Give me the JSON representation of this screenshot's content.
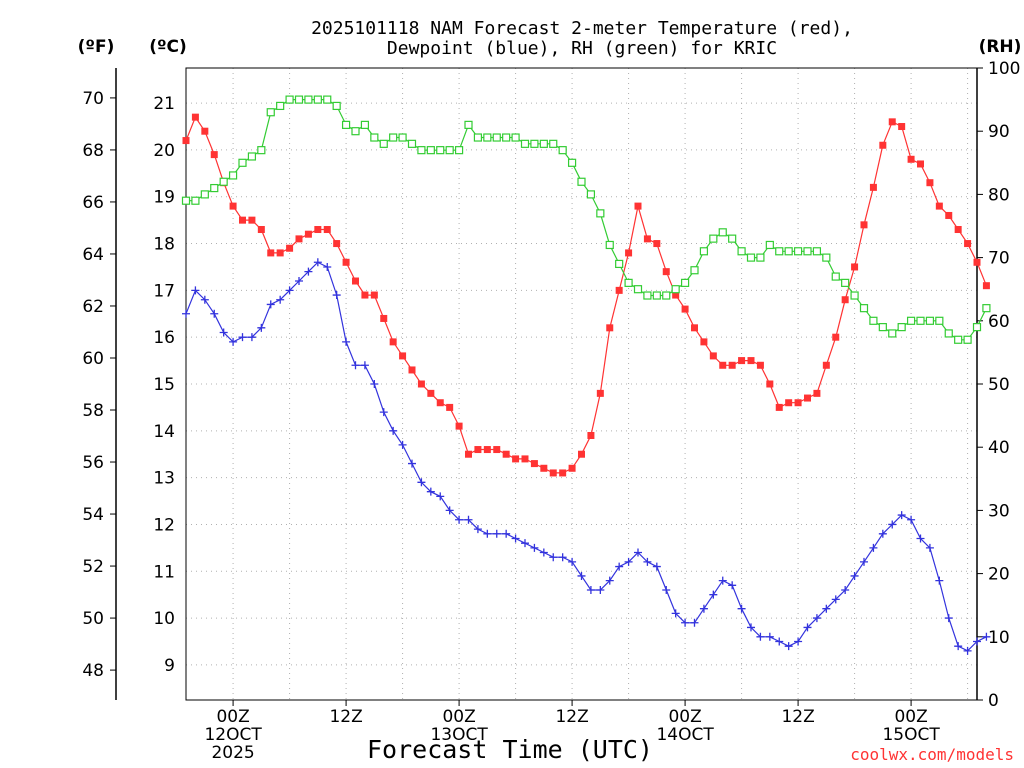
{
  "chart_data": {
    "type": "line",
    "title_lines": [
      "2025101118 NAM Forecast 2-meter Temperature (red),",
      "Dewpoint (blue), RH (green) for KRIC"
    ],
    "xlabel": "Forecast Time (UTC)",
    "credit": "coolwx.com/models",
    "units": {
      "fahrenheit": "(ºF)",
      "celsius": "(ºC)",
      "rh": "(RH)"
    },
    "x_hours_range": [
      -5,
      79
    ],
    "x_ticks": [
      {
        "hour": 0,
        "lines": [
          "00Z",
          "12OCT",
          "2025"
        ]
      },
      {
        "hour": 12,
        "lines": [
          "12Z"
        ]
      },
      {
        "hour": 24,
        "lines": [
          "00Z",
          "13OCT"
        ]
      },
      {
        "hour": 36,
        "lines": [
          "12Z"
        ]
      },
      {
        "hour": 48,
        "lines": [
          "00Z",
          "14OCT"
        ]
      },
      {
        "hour": 60,
        "lines": [
          "12Z"
        ]
      },
      {
        "hour": 72,
        "lines": [
          "00Z",
          "15OCT"
        ]
      }
    ],
    "celsius_range": [
      8.25,
      21.75
    ],
    "celsius_ticks": [
      9,
      10,
      11,
      12,
      13,
      14,
      15,
      16,
      17,
      18,
      19,
      20,
      21
    ],
    "fahrenheit_ticks": [
      48,
      50,
      52,
      54,
      56,
      58,
      60,
      62,
      64,
      66,
      68,
      70
    ],
    "rh_range": [
      0,
      100
    ],
    "rh_ticks": [
      0,
      10,
      20,
      30,
      40,
      50,
      60,
      70,
      80,
      90,
      100
    ],
    "series": [
      {
        "name": "Temperature",
        "unit": "C",
        "color": "#ff3333",
        "marker": "filled-square",
        "start_hour": -5,
        "step_hours": 1,
        "values": [
          20.2,
          20.7,
          20.4,
          19.9,
          19.3,
          18.8,
          18.5,
          18.5,
          18.3,
          17.8,
          17.8,
          17.9,
          18.1,
          18.2,
          18.3,
          18.3,
          18.0,
          17.6,
          17.2,
          16.9,
          16.9,
          16.4,
          15.9,
          15.6,
          15.3,
          15.0,
          14.8,
          14.6,
          14.5,
          14.1,
          13.5,
          13.6,
          13.6,
          13.6,
          13.5,
          13.4,
          13.4,
          13.3,
          13.2,
          13.1,
          13.1,
          13.2,
          13.5,
          13.9,
          14.8,
          16.2,
          17.0,
          17.8,
          18.8,
          18.1,
          18.0,
          17.4,
          16.9,
          16.6,
          16.2,
          15.9,
          15.6,
          15.4,
          15.4,
          15.5,
          15.5,
          15.4,
          15.0,
          14.5,
          14.6,
          14.6,
          14.7,
          14.8,
          15.4,
          16.0,
          16.8,
          17.5,
          18.4,
          19.2,
          20.1,
          20.6,
          20.5,
          19.8,
          19.7,
          19.3,
          18.8,
          18.6,
          18.3,
          18.0,
          17.6,
          17.1
        ]
      },
      {
        "name": "Dewpoint",
        "unit": "C",
        "color": "#3333dd",
        "marker": "plus",
        "start_hour": -5,
        "step_hours": 1,
        "values": [
          16.5,
          17.0,
          16.8,
          16.5,
          16.1,
          15.9,
          16.0,
          16.0,
          16.2,
          16.7,
          16.8,
          17.0,
          17.2,
          17.4,
          17.6,
          17.5,
          16.9,
          15.9,
          15.4,
          15.4,
          15.0,
          14.4,
          14.0,
          13.7,
          13.3,
          12.9,
          12.7,
          12.6,
          12.3,
          12.1,
          12.1,
          11.9,
          11.8,
          11.8,
          11.8,
          11.7,
          11.6,
          11.5,
          11.4,
          11.3,
          11.3,
          11.2,
          10.9,
          10.6,
          10.6,
          10.8,
          11.1,
          11.2,
          11.4,
          11.2,
          11.1,
          10.6,
          10.1,
          9.9,
          9.9,
          10.2,
          10.5,
          10.8,
          10.7,
          10.2,
          9.8,
          9.6,
          9.6,
          9.5,
          9.4,
          9.5,
          9.8,
          10.0,
          10.2,
          10.4,
          10.6,
          10.9,
          11.2,
          11.5,
          11.8,
          12.0,
          12.2,
          12.1,
          11.7,
          11.5,
          10.8,
          10.0,
          9.4,
          9.3,
          9.5,
          9.6
        ]
      },
      {
        "name": "RH",
        "unit": "%",
        "color": "#33cc33",
        "marker": "open-square",
        "start_hour": -5,
        "step_hours": 1,
        "values": [
          79,
          79,
          80,
          81,
          82,
          83,
          85,
          86,
          87,
          93,
          94,
          95,
          95,
          95,
          95,
          95,
          94,
          91,
          90,
          91,
          89,
          88,
          89,
          89,
          88,
          87,
          87,
          87,
          87,
          87,
          91,
          89,
          89,
          89,
          89,
          89,
          88,
          88,
          88,
          88,
          87,
          85,
          82,
          80,
          77,
          72,
          69,
          66,
          65,
          64,
          64,
          64,
          65,
          66,
          68,
          71,
          73,
          74,
          73,
          71,
          70,
          70,
          72,
          71,
          71,
          71,
          71,
          71,
          70,
          67,
          66,
          64,
          62,
          60,
          59,
          58,
          59,
          60,
          60,
          60,
          60,
          58,
          57,
          57,
          59,
          62
        ]
      }
    ]
  }
}
